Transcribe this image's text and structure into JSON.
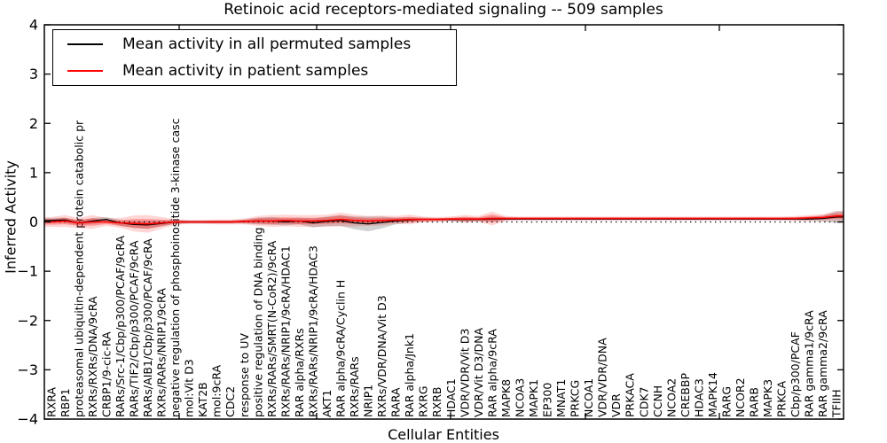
{
  "chart_data": {
    "type": "line",
    "title": "Retinoic acid receptors-mediated signaling -- 509 samples",
    "xlabel": "Cellular Entities",
    "ylabel": "Inferred Activity",
    "ylim": [
      -4,
      4
    ],
    "yticks": [
      4,
      3,
      2,
      1,
      0,
      -1,
      -2,
      -3,
      -4
    ],
    "grid": false,
    "legend_position": "upper left",
    "zero_line": {
      "y": 0,
      "style": "dotted",
      "color": "#000000"
    },
    "legend": [
      {
        "label": "Mean activity in all permuted samples",
        "color": "#000000"
      },
      {
        "label": "Mean activity in patient samples",
        "color": "#ff0000"
      }
    ],
    "categories": [
      "RXRA",
      "RBP1",
      "proteasomal ubiquitin-dependent protein catabolic pr",
      "RXRs/RXRs/DNA/9cRA",
      "CRBP1/9-cic-RA",
      "RARs/Src-1/Cbp/p300/PCAF/9cRA",
      "RARs/TIF2/Cbp/p300/PCAF/9cRA",
      "RARs/AIB1/Cbp/p300/PCAF/9cRA",
      "RXRs/RARs/NRIP1/9cRA",
      "negative regulation of phosphoinositide 3-kinase casc",
      "mol:Vit D3",
      "KAT2B",
      "mol:9cRA",
      "CDC2",
      "response to UV",
      "positive regulation of DNA binding",
      "RXRs/RARs/SMRT(N-CoR2)/9cRA",
      "RXRs/RARs/NRIP1/9cRA/HDAC1",
      "RAR alpha/RXRs",
      "RXRs/RARs/NRIP1/9cRA/HDAC3",
      "AKT1",
      "RAR alpha/9cRA/Cyclin H",
      "RXRs/RARs",
      "NRIP1",
      "RXRs/VDR/DNA/Vit D3",
      "RARA",
      "RAR alpha/Jnk1",
      "RXRG",
      "RXRB",
      "HDAC1",
      "VDR/VDR/Vit D3",
      "VDR/Vit D3/DNA",
      "RAR alpha/9cRA",
      "MAPK8",
      "NCOA3",
      "MAPK1",
      "EP300",
      "MNAT1",
      "PRKCG",
      "NCOA1",
      "VDR/VDR/DNA",
      "VDR",
      "PRKACA",
      "CDK7",
      "CCNH",
      "NCOA2",
      "CREBBP",
      "HDAC3",
      "MAPK14",
      "RARG",
      "NCOR2",
      "RARB",
      "MAPK3",
      "PRKCA",
      "Cbp/p300/PCAF",
      "RAR gamma1/9cRA",
      "RAR gamma2/9cRA",
      "TFIIH"
    ],
    "series": [
      {
        "name": "Mean activity in all permuted samples",
        "color": "#000000",
        "band_color": "rgba(0,0,0,0.18)",
        "values": [
          0.03,
          0.04,
          -0.02,
          0.02,
          0.05,
          -0.02,
          -0.05,
          -0.06,
          -0.03,
          0.0,
          0.0,
          0.0,
          0.0,
          0.0,
          0.01,
          0.02,
          0.02,
          0.0,
          0.02,
          -0.02,
          0.01,
          0.03,
          -0.02,
          -0.04,
          -0.01,
          0.02,
          0.04,
          0.05,
          0.05,
          0.05,
          0.05,
          0.05,
          0.06,
          0.06,
          0.06,
          0.06,
          0.06,
          0.06,
          0.06,
          0.06,
          0.06,
          0.06,
          0.06,
          0.06,
          0.06,
          0.06,
          0.06,
          0.06,
          0.06,
          0.06,
          0.06,
          0.06,
          0.06,
          0.06,
          0.06,
          0.06,
          0.07,
          0.1
        ],
        "band": [
          0.05,
          0.05,
          0.05,
          0.06,
          0.05,
          0.06,
          0.07,
          0.08,
          0.06,
          0.04,
          0.03,
          0.03,
          0.03,
          0.03,
          0.04,
          0.07,
          0.08,
          0.07,
          0.07,
          0.09,
          0.1,
          0.11,
          0.13,
          0.15,
          0.12,
          0.07,
          0.05,
          0.04,
          0.03,
          0.03,
          0.04,
          0.03,
          0.05,
          0.03,
          0.025,
          0.025,
          0.025,
          0.025,
          0.025,
          0.025,
          0.025,
          0.025,
          0.025,
          0.025,
          0.025,
          0.025,
          0.025,
          0.025,
          0.025,
          0.025,
          0.025,
          0.025,
          0.025,
          0.025,
          0.03,
          0.04,
          0.06,
          0.12
        ]
      },
      {
        "name": "Mean activity in patient samples",
        "color": "#ff0000",
        "band_color": "rgba(255,0,0,0.16)",
        "values": [
          0.0,
          0.02,
          -0.02,
          0.0,
          0.0,
          -0.02,
          -0.03,
          -0.04,
          -0.02,
          0.0,
          0.0,
          0.0,
          0.0,
          0.0,
          0.01,
          0.02,
          0.02,
          0.03,
          0.02,
          0.02,
          0.03,
          0.05,
          0.03,
          0.02,
          0.03,
          0.04,
          0.05,
          0.05,
          0.05,
          0.06,
          0.06,
          0.06,
          0.07,
          0.07,
          0.07,
          0.07,
          0.07,
          0.07,
          0.07,
          0.07,
          0.07,
          0.07,
          0.07,
          0.07,
          0.07,
          0.07,
          0.07,
          0.07,
          0.07,
          0.07,
          0.07,
          0.07,
          0.07,
          0.07,
          0.07,
          0.08,
          0.09,
          0.12
        ],
        "band": [
          0.1,
          0.12,
          0.1,
          0.14,
          0.08,
          0.1,
          0.16,
          0.18,
          0.12,
          0.06,
          0.04,
          0.04,
          0.05,
          0.05,
          0.06,
          0.1,
          0.12,
          0.12,
          0.12,
          0.12,
          0.12,
          0.14,
          0.12,
          0.1,
          0.1,
          0.08,
          0.1,
          0.06,
          0.05,
          0.05,
          0.08,
          0.06,
          0.14,
          0.05,
          0.04,
          0.04,
          0.04,
          0.04,
          0.04,
          0.04,
          0.04,
          0.04,
          0.04,
          0.04,
          0.04,
          0.04,
          0.04,
          0.04,
          0.04,
          0.04,
          0.04,
          0.04,
          0.04,
          0.04,
          0.05,
          0.06,
          0.07,
          0.1
        ]
      }
    ]
  }
}
